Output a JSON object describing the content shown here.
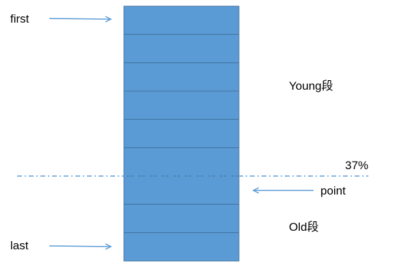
{
  "labels": {
    "first": "first",
    "last": "last",
    "young": "Young段",
    "old": "Old段",
    "point": "point",
    "percent": "37%"
  },
  "blocks": {
    "count": 9
  },
  "colors": {
    "block_fill": "#5b9bd5",
    "block_line": "#41719c",
    "arrow": "#5b9bd5",
    "divider": "#5b9bd5",
    "text": "#000000"
  },
  "divider": {
    "style": "dash-dot"
  }
}
